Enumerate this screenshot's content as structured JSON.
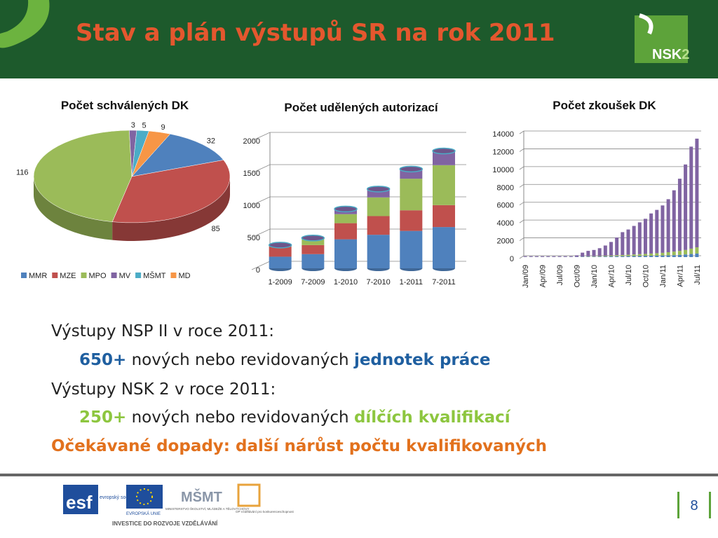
{
  "header": {
    "title": "Stav a plán výstupů SR na rok 2011",
    "logo_main": "NSK",
    "logo_num": "2"
  },
  "chart_data": [
    {
      "type": "pie",
      "title": "Počet schválených DK",
      "categories": [
        "MMR",
        "MZE",
        "MPO",
        "MV",
        "MŠMT",
        "MD"
      ],
      "values": [
        32,
        85,
        116,
        3,
        5,
        9
      ],
      "colors": [
        "#4f81bd",
        "#c0504d",
        "#9bbb59",
        "#8064a2",
        "#4bacc6",
        "#f79646"
      ],
      "legend": "bottom"
    },
    {
      "type": "bar",
      "stacked": true,
      "title": "Počet udělených autorizací",
      "categories": [
        "1-2009",
        "7-2009",
        "1-2010",
        "7-2010",
        "1-2011",
        "7-2011"
      ],
      "series": [
        {
          "color": "#4f81bd",
          "values": [
            180,
            220,
            450,
            520,
            580,
            640
          ]
        },
        {
          "color": "#c0504d",
          "values": [
            160,
            140,
            250,
            290,
            320,
            340
          ]
        },
        {
          "color": "#9bbb59",
          "values": [
            10,
            100,
            140,
            290,
            490,
            620
          ]
        },
        {
          "color": "#8064a2",
          "values": [
            10,
            10,
            80,
            130,
            150,
            220
          ]
        }
      ],
      "ylim": [
        0,
        2000
      ],
      "yticks": [
        0,
        500,
        1000,
        1500,
        2000
      ],
      "grid": true
    },
    {
      "type": "bar",
      "stacked": true,
      "title": "Počet zkoušek DK",
      "categories": [
        "Jan/09",
        null,
        null,
        "Apr/09",
        null,
        null,
        "Jul/09",
        null,
        null,
        "Oct/09",
        null,
        null,
        "Jan/10",
        null,
        null,
        "Apr/10",
        null,
        null,
        "Jul/10",
        null,
        null,
        "Oct/10",
        null,
        null,
        "Jan/11",
        null,
        null,
        "Apr/11",
        null,
        null,
        "Jul/11"
      ],
      "series": [
        {
          "color": "#4f81bd",
          "values": [
            20,
            20,
            20,
            20,
            20,
            20,
            20,
            20,
            20,
            30,
            40,
            50,
            50,
            60,
            70,
            80,
            90,
            100,
            110,
            120,
            130,
            140,
            150,
            160,
            180,
            200,
            220,
            250,
            300,
            350,
            400
          ]
        },
        {
          "color": "#9bbb59",
          "values": [
            0,
            0,
            0,
            0,
            0,
            0,
            0,
            0,
            0,
            0,
            20,
            40,
            50,
            60,
            80,
            100,
            120,
            140,
            160,
            180,
            200,
            220,
            250,
            280,
            300,
            350,
            400,
            450,
            500,
            600,
            700
          ]
        },
        {
          "color": "#8064a2",
          "values": [
            80,
            80,
            80,
            80,
            80,
            80,
            80,
            80,
            80,
            170,
            440,
            610,
            700,
            880,
            1150,
            1520,
            1990,
            2560,
            2830,
            3200,
            3570,
            3940,
            4500,
            4860,
            5320,
            5950,
            6880,
            8100,
            9600,
            11450,
            12200
          ]
        }
      ],
      "ylim": [
        0,
        14000
      ],
      "yticks": [
        0,
        2000,
        4000,
        6000,
        8000,
        10000,
        12000,
        14000
      ],
      "grid": true
    }
  ],
  "body": {
    "line1": "Výstupy NSP II v roce 2011:",
    "line2": {
      "number": "650+",
      "text": "nových nebo revidovaných",
      "highlight": "jednotek práce"
    },
    "line3": "Výstupy NSK 2 v roce 2011:",
    "line4": {
      "number": "250+",
      "text": "nových nebo revidovaných",
      "highlight": "dílčích kvalifikací"
    },
    "line5": "Očekávané dopady: další nárůst počtu kvalifikovaných"
  },
  "footer": {
    "esf": "esf",
    "esf_text": "evropský sociální fond v ČR",
    "eu": "EVROPSKÁ UNIE",
    "msmt": "MŠMT",
    "msmt_text": "MINISTERSTVO ŠKOLSTVÍ, MLÁDEŽE A TĚLOVÝCHOVY",
    "op": "OP Vzdělávání pro konkurenceschopnost",
    "investice": "INVESTICE DO ROZVOJE VZDĚLÁVÁNÍ",
    "page": "8"
  }
}
